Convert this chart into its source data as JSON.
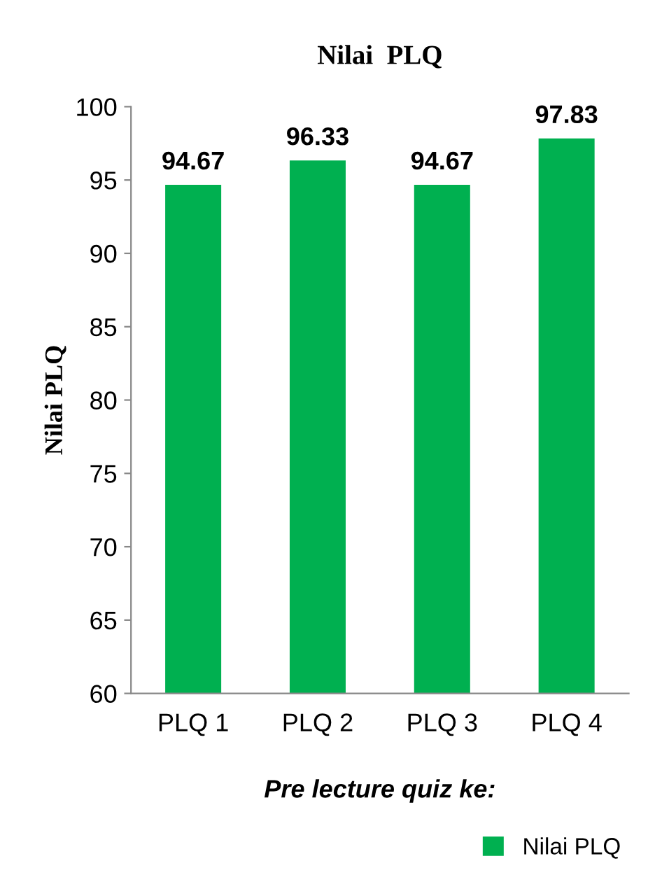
{
  "chart_data": {
    "type": "bar",
    "title": "Nilai  PLQ",
    "xlabel": "Pre lecture quiz ke:",
    "ylabel": "Nilai PLQ",
    "categories": [
      "PLQ 1",
      "PLQ 2",
      "PLQ 3",
      "PLQ 4"
    ],
    "series": [
      {
        "name": "Nilai PLQ",
        "color": "#00b050",
        "values": [
          94.67,
          96.33,
          94.67,
          97.83
        ]
      }
    ],
    "ylim": [
      60,
      100
    ],
    "yticks": [
      60,
      65,
      70,
      75,
      80,
      85,
      90,
      95,
      100
    ],
    "data_labels": true,
    "grid": false,
    "legend": "bottom right"
  }
}
